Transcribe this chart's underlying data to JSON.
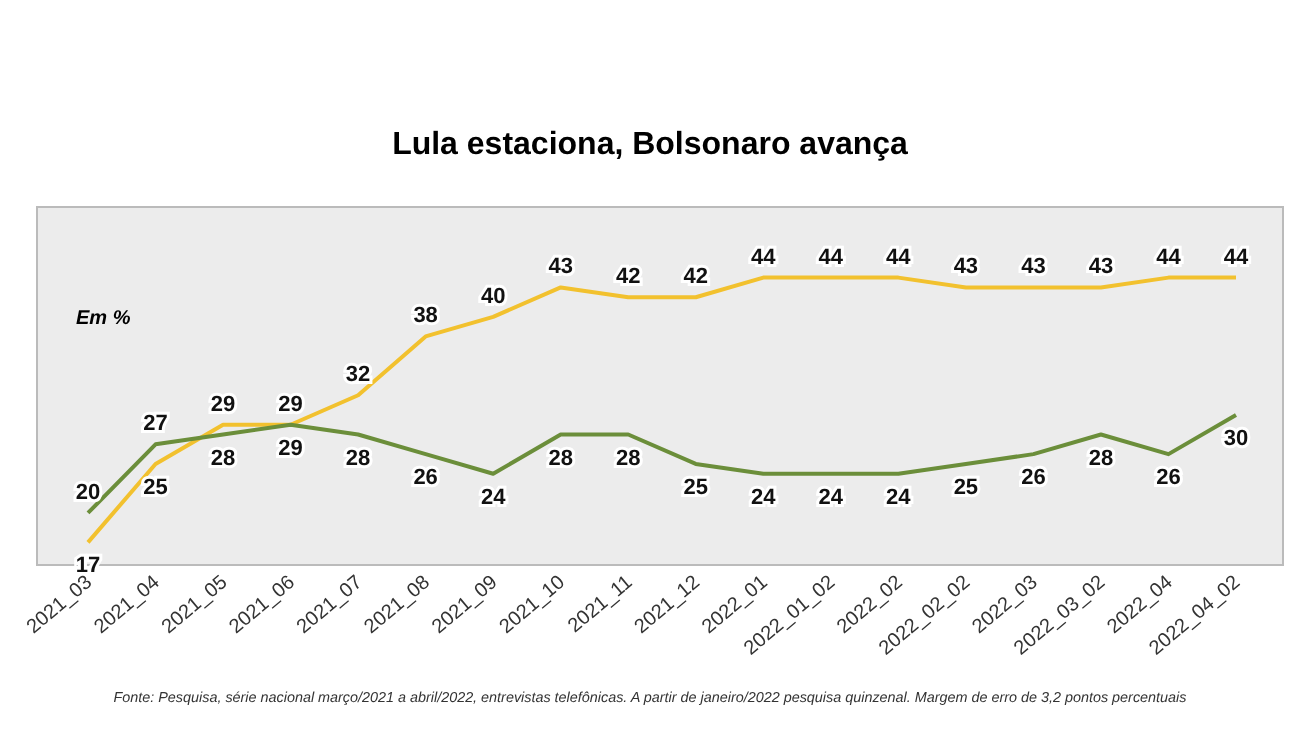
{
  "chart_data": {
    "type": "line",
    "title": "Lula estaciona, Bolsonaro avança",
    "categories": [
      "2021_03",
      "2021_04",
      "2021_05",
      "2021_06",
      "2021_07",
      "2021_08",
      "2021_09",
      "2021_10",
      "2021_11",
      "2021_12",
      "2022_01",
      "2022_01_02",
      "2022_02",
      "2022_02_02",
      "2022_03",
      "2022_03_02",
      "2022_04",
      "2022_04_02"
    ],
    "series": [
      {
        "color": "#f2c12e",
        "values": [
          17,
          25,
          29,
          29,
          32,
          38,
          40,
          43,
          42,
          42,
          44,
          44,
          44,
          43,
          43,
          43,
          44,
          44
        ]
      },
      {
        "color": "#6b8e3a",
        "values": [
          20,
          27,
          28,
          29,
          28,
          26,
          24,
          28,
          28,
          25,
          24,
          24,
          24,
          25,
          26,
          28,
          26,
          30
        ]
      }
    ],
    "data_labels": true,
    "grid": false,
    "legend": false,
    "marker": "none",
    "line_style": "solid",
    "annotations": [
      "Em %",
      "Fonte: Pesquisa, série nacional  março/2021 a abril/2022, entrevistas telefônicas. A partir de janeiro/2022 pesquisa quinzenal. Margem de erro de 3,2 pontos percentuais"
    ]
  }
}
